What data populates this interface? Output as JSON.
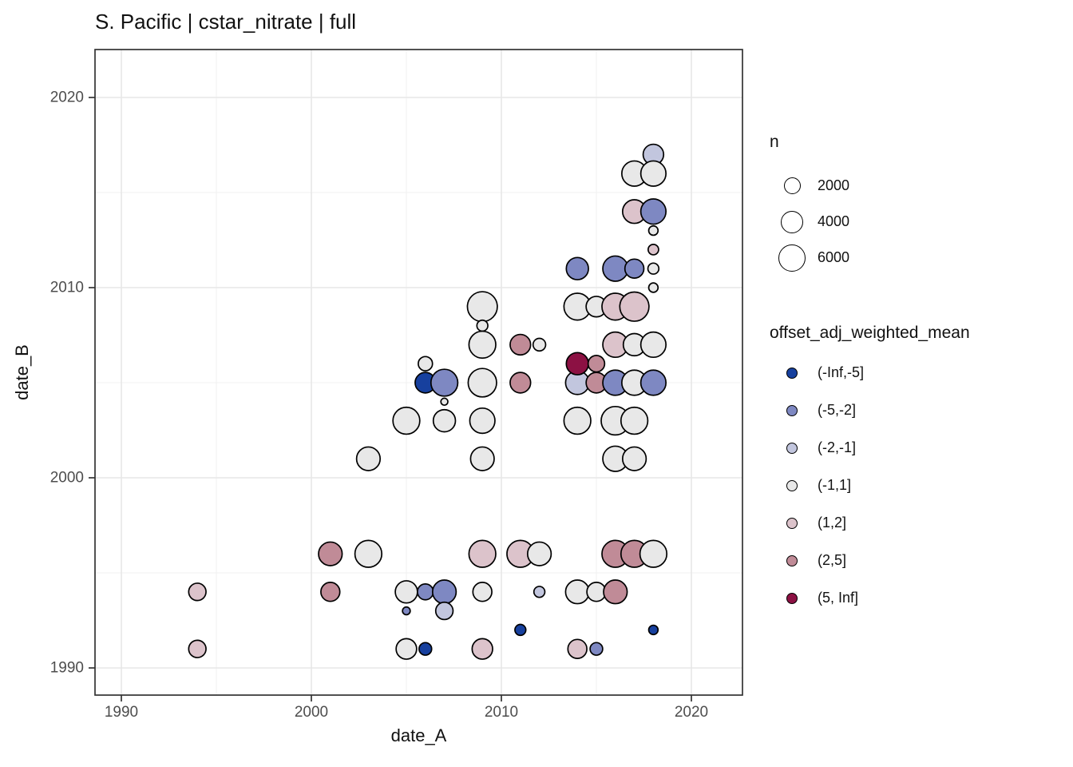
{
  "chart_data": {
    "type": "scatter",
    "title": "S. Pacific | cstar_nitrate | full",
    "xlabel": "date_A",
    "ylabel": "date_B",
    "xlim": [
      1988.6,
      2022.8
    ],
    "ylim": [
      1988.6,
      2022.6
    ],
    "x_ticks": [
      1990,
      2000,
      2010,
      2020
    ],
    "y_ticks": [
      1990,
      2000,
      2010,
      2020
    ],
    "x_minor_gridlines": [
      1995,
      2005,
      2015
    ],
    "y_minor_gridlines": [
      1995,
      2005,
      2015
    ],
    "grid": "on",
    "legend_position": "right",
    "size_legend": {
      "title": "n",
      "values": [
        2000,
        4000,
        6000
      ]
    },
    "color_legend": {
      "title": "offset_adj_weighted_mean",
      "bins": [
        {
          "label": "(-Inf,-5]",
          "color": "#17409e"
        },
        {
          "label": "(-5,-2]",
          "color": "#7e88c2"
        },
        {
          "label": "(-2,-1]",
          "color": "#c2c6de"
        },
        {
          "label": "(-1,1]",
          "color": "#e8e8e8"
        },
        {
          "label": "(1,2]",
          "color": "#dcc3cb"
        },
        {
          "label": "(2,5]",
          "color": "#c08b97"
        },
        {
          "label": "(5, Inf]",
          "color": "#8c1143"
        }
      ]
    },
    "points": [
      {
        "x": 2018,
        "y": 2017,
        "bin": "(-2,-1]",
        "n": 3850
      },
      {
        "x": 2017,
        "y": 2016,
        "bin": "(-1,1]",
        "n": 5800
      },
      {
        "x": 2018,
        "y": 2016,
        "bin": "(-1,1]",
        "n": 5800
      },
      {
        "x": 2017,
        "y": 2014,
        "bin": "(1,2]",
        "n": 5100
      },
      {
        "x": 2018,
        "y": 2014,
        "bin": "(-5,-2]",
        "n": 5800
      },
      {
        "x": 2018,
        "y": 2013,
        "bin": "(-1,1]",
        "n": 800
      },
      {
        "x": 2018,
        "y": 2012,
        "bin": "(1,2]",
        "n": 1000
      },
      {
        "x": 2014,
        "y": 2011,
        "bin": "(-5,-2]",
        "n": 4500
      },
      {
        "x": 2016,
        "y": 2011,
        "bin": "(-5,-2]",
        "n": 5800
      },
      {
        "x": 2017,
        "y": 2011,
        "bin": "(-5,-2]",
        "n": 3300
      },
      {
        "x": 2018,
        "y": 2011,
        "bin": "(-1,1]",
        "n": 1100
      },
      {
        "x": 2018,
        "y": 2010,
        "bin": "(-1,1]",
        "n": 800
      },
      {
        "x": 2009,
        "y": 2009,
        "bin": "(-1,1]",
        "n": 8200
      },
      {
        "x": 2014,
        "y": 2009,
        "bin": "(-1,1]",
        "n": 6600
      },
      {
        "x": 2015,
        "y": 2009,
        "bin": "(-1,1]",
        "n": 3850
      },
      {
        "x": 2016,
        "y": 2009,
        "bin": "(1,2]",
        "n": 6600
      },
      {
        "x": 2017,
        "y": 2009,
        "bin": "(1,2]",
        "n": 7800
      },
      {
        "x": 2009,
        "y": 2008,
        "bin": "(-1,1]",
        "n": 1100
      },
      {
        "x": 2009,
        "y": 2007,
        "bin": "(-1,1]",
        "n": 6600
      },
      {
        "x": 2011,
        "y": 2007,
        "bin": "(2,5]",
        "n": 3850
      },
      {
        "x": 2012,
        "y": 2007,
        "bin": "(-1,1]",
        "n": 1450
      },
      {
        "x": 2016,
        "y": 2007,
        "bin": "(1,2]",
        "n": 5800
      },
      {
        "x": 2017,
        "y": 2007,
        "bin": "(-1,1]",
        "n": 4500
      },
      {
        "x": 2018,
        "y": 2007,
        "bin": "(-1,1]",
        "n": 5800
      },
      {
        "x": 2006,
        "y": 2006,
        "bin": "(-1,1]",
        "n": 1850
      },
      {
        "x": 2006,
        "y": 2005,
        "bin": "(-Inf,-5]",
        "n": 3850
      },
      {
        "x": 2007,
        "y": 2005,
        "bin": "(-5,-2]",
        "n": 6600
      },
      {
        "x": 2009,
        "y": 2005,
        "bin": "(-1,1]",
        "n": 7400
      },
      {
        "x": 2011,
        "y": 2005,
        "bin": "(2,5]",
        "n": 3850
      },
      {
        "x": 2014,
        "y": 2005,
        "bin": "(-2,-1]",
        "n": 5100
      },
      {
        "x": 2015,
        "y": 2005,
        "bin": "(2,5]",
        "n": 3850
      },
      {
        "x": 2016,
        "y": 2005,
        "bin": "(-5,-2]",
        "n": 5800
      },
      {
        "x": 2017,
        "y": 2005,
        "bin": "(-1,1]",
        "n": 5800
      },
      {
        "x": 2018,
        "y": 2005,
        "bin": "(-5,-2]",
        "n": 5800
      },
      {
        "x": 2014,
        "y": 2006,
        "bin": "(5, Inf]",
        "n": 4500
      },
      {
        "x": 2015,
        "y": 2006,
        "bin": "(2,5]",
        "n": 2500
      },
      {
        "x": 2007,
        "y": 2004,
        "bin": "(-1,1]",
        "n": 450
      },
      {
        "x": 2005,
        "y": 2003,
        "bin": "(-1,1]",
        "n": 6600
      },
      {
        "x": 2007,
        "y": 2003,
        "bin": "(-1,1]",
        "n": 4500
      },
      {
        "x": 2009,
        "y": 2003,
        "bin": "(-1,1]",
        "n": 5800
      },
      {
        "x": 2014,
        "y": 2003,
        "bin": "(-1,1]",
        "n": 6600
      },
      {
        "x": 2016,
        "y": 2003,
        "bin": "(-1,1]",
        "n": 7400
      },
      {
        "x": 2017,
        "y": 2003,
        "bin": "(-1,1]",
        "n": 6600
      },
      {
        "x": 2003,
        "y": 2001,
        "bin": "(-1,1]",
        "n": 5100
      },
      {
        "x": 2009,
        "y": 2001,
        "bin": "(-1,1]",
        "n": 5100
      },
      {
        "x": 2016,
        "y": 2001,
        "bin": "(-1,1]",
        "n": 5800
      },
      {
        "x": 2017,
        "y": 2001,
        "bin": "(-1,1]",
        "n": 5100
      },
      {
        "x": 2001,
        "y": 1996,
        "bin": "(2,5]",
        "n": 5100
      },
      {
        "x": 2003,
        "y": 1996,
        "bin": "(-1,1]",
        "n": 6600
      },
      {
        "x": 2009,
        "y": 1996,
        "bin": "(1,2]",
        "n": 6600
      },
      {
        "x": 2011,
        "y": 1996,
        "bin": "(1,2]",
        "n": 6600
      },
      {
        "x": 2012,
        "y": 1996,
        "bin": "(-1,1]",
        "n": 5100
      },
      {
        "x": 2016,
        "y": 1996,
        "bin": "(2,5]",
        "n": 6600
      },
      {
        "x": 2017,
        "y": 1996,
        "bin": "(2,5]",
        "n": 6600
      },
      {
        "x": 2018,
        "y": 1996,
        "bin": "(-1,1]",
        "n": 6600
      },
      {
        "x": 1994,
        "y": 1994,
        "bin": "(1,2]",
        "n": 2750
      },
      {
        "x": 2001,
        "y": 1994,
        "bin": "(2,5]",
        "n": 3300
      },
      {
        "x": 2005,
        "y": 1994,
        "bin": "(-1,1]",
        "n": 4500
      },
      {
        "x": 2006,
        "y": 1994,
        "bin": "(-5,-2]",
        "n": 2300
      },
      {
        "x": 2007,
        "y": 1994,
        "bin": "(-5,-2]",
        "n": 5100
      },
      {
        "x": 2009,
        "y": 1994,
        "bin": "(-1,1]",
        "n": 3300
      },
      {
        "x": 2012,
        "y": 1994,
        "bin": "(-2,-1]",
        "n": 1100
      },
      {
        "x": 2014,
        "y": 1994,
        "bin": "(-1,1]",
        "n": 5100
      },
      {
        "x": 2015,
        "y": 1994,
        "bin": "(-1,1]",
        "n": 3300
      },
      {
        "x": 2016,
        "y": 1994,
        "bin": "(2,5]",
        "n": 5100
      },
      {
        "x": 2005,
        "y": 1993,
        "bin": "(-5,-2]",
        "n": 550
      },
      {
        "x": 2007,
        "y": 1993,
        "bin": "(-2,-1]",
        "n": 2750
      },
      {
        "x": 2011,
        "y": 1992,
        "bin": "(-Inf,-5]",
        "n": 1100
      },
      {
        "x": 2018,
        "y": 1992,
        "bin": "(-Inf,-5]",
        "n": 800
      },
      {
        "x": 1994,
        "y": 1991,
        "bin": "(1,2]",
        "n": 2750
      },
      {
        "x": 2005,
        "y": 1991,
        "bin": "(-1,1]",
        "n": 3850
      },
      {
        "x": 2006,
        "y": 1991,
        "bin": "(-Inf,-5]",
        "n": 1450
      },
      {
        "x": 2009,
        "y": 1991,
        "bin": "(1,2]",
        "n": 3850
      },
      {
        "x": 2014,
        "y": 1991,
        "bin": "(1,2]",
        "n": 3300
      },
      {
        "x": 2015,
        "y": 1991,
        "bin": "(-5,-2]",
        "n": 1450
      }
    ]
  },
  "colors": {
    "background": "#ffffff",
    "panel_border": "#333333",
    "grid_major": "#e7e7e7",
    "grid_minor": "#f1f1f1",
    "tick_mark": "#333333",
    "tick_label": "#4d4d4d",
    "point_stroke": "#000000"
  }
}
